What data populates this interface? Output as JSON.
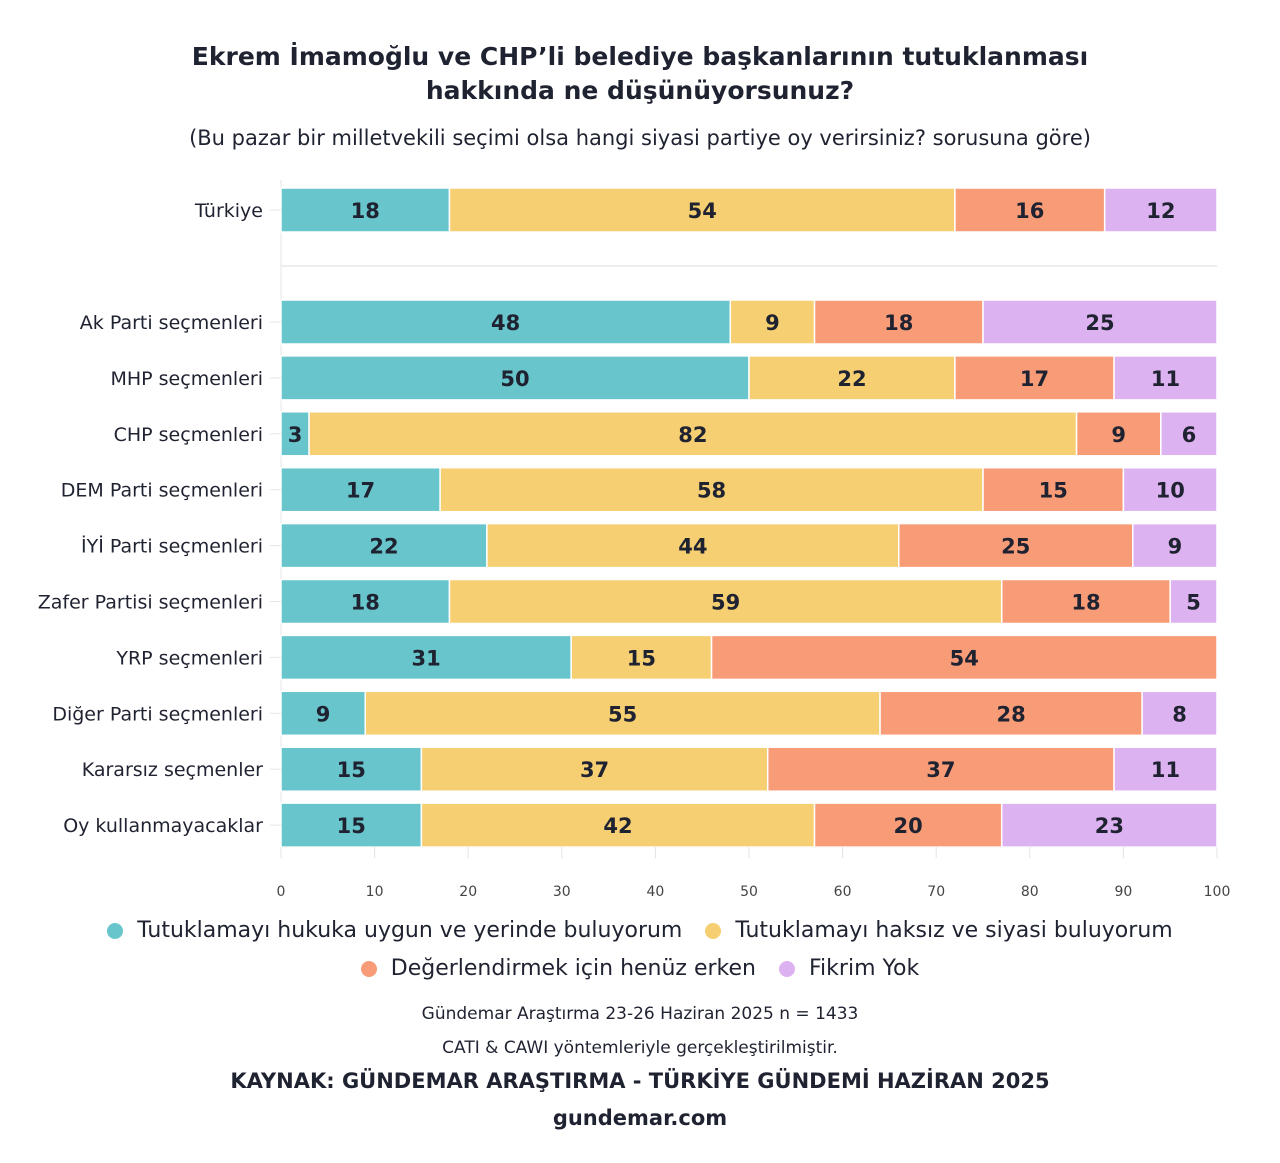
{
  "header": {
    "title_line1": "Ekrem İmamoğlu ve CHP’li belediye başkanlarının tutuklanması",
    "title_line2": "hakkında ne düşünüyorsunuz?",
    "subtitle": "(Bu pazar bir milletvekili seçimi olsa hangi siyasi partiye oy verirsiniz? sorusuna göre)"
  },
  "chart_data": {
    "type": "bar",
    "orientation": "horizontal",
    "stacked": true,
    "title": "Ekrem İmamoğlu ve CHP’li belediye başkanlarının tutuklanması hakkında ne düşünüyorsunuz?",
    "subtitle": "(Bu pazar bir milletvekili seçimi olsa hangi siyasi partiye oy verirsiniz? sorusuna göre)",
    "xlabel": "",
    "ylabel": "",
    "xlim": [
      0,
      100
    ],
    "xticks": [
      0,
      10,
      20,
      30,
      40,
      50,
      60,
      70,
      80,
      90,
      100
    ],
    "grid": true,
    "legend_position": "bottom",
    "categories": [
      "Türkiye",
      "Ak Parti seçmenleri",
      "MHP seçmenleri",
      "CHP seçmenleri",
      "DEM Parti seçmenleri",
      "İYİ Parti seçmenleri",
      "Zafer Partisi seçmenleri",
      "YRP seçmenleri",
      "Diğer Parti seçmenleri",
      "Kararsız seçmenler",
      "Oy kullanmayacaklar"
    ],
    "series": [
      {
        "name": "Tutuklamayı hukuka uygun ve yerinde buluyorum",
        "color": "#67c5cb",
        "values": [
          18,
          48,
          50,
          3,
          17,
          22,
          18,
          31,
          9,
          15,
          15
        ]
      },
      {
        "name": "Tutuklamayı haksız ve siyasi buluyorum",
        "color": "#f5cf72",
        "values": [
          54,
          9,
          22,
          82,
          58,
          44,
          59,
          15,
          55,
          37,
          42
        ]
      },
      {
        "name": "Değerlendirmek için henüz erken",
        "color": "#f89c77",
        "values": [
          16,
          18,
          17,
          9,
          15,
          25,
          18,
          54,
          28,
          37,
          20
        ]
      },
      {
        "name": "Fikrim Yok",
        "color": "#ddb2f1",
        "values": [
          12,
          25,
          11,
          6,
          10,
          9,
          5,
          0,
          8,
          11,
          23
        ]
      }
    ]
  },
  "footer": {
    "note1": "Gündemar Araştırma 23-26 Haziran 2025 n = 1433",
    "note2": "CATI & CAWI yöntemleriyle gerçekleştirilmiştir.",
    "source": "KAYNAK: GÜNDEMAR ARAŞTIRMA - TÜRKİYE GÜNDEMİ HAZİRAN 2025",
    "website": "gundemar.com"
  }
}
